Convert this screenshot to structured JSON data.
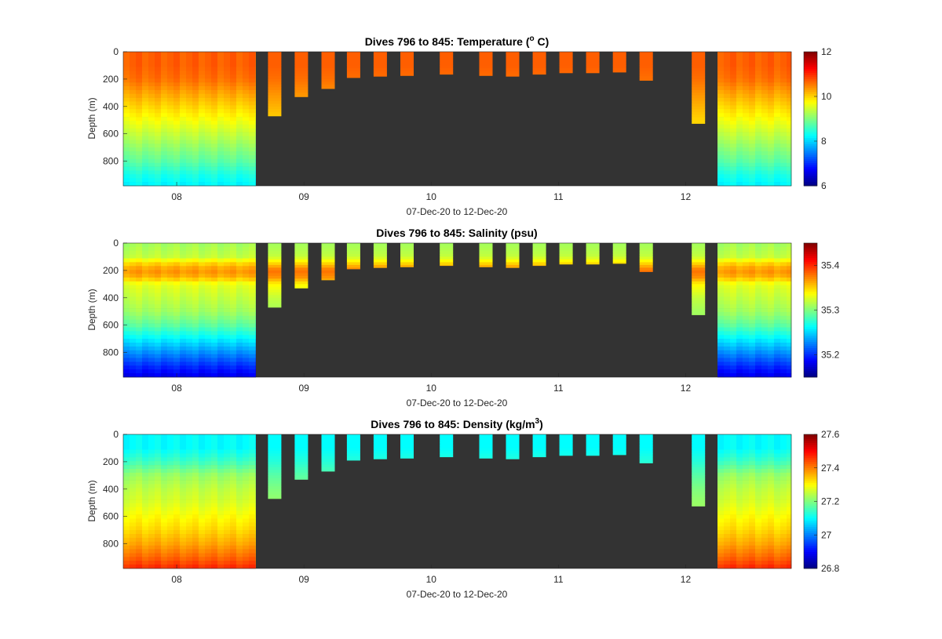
{
  "figure": {
    "xlabel": "07-Dec-20 to 12-Dec-20",
    "ylabel": "Depth (m)",
    "x_tick_labels": [
      "08",
      "09",
      "10",
      "11",
      "12"
    ],
    "y_tick_labels": [
      "0",
      "200",
      "400",
      "600",
      "800"
    ],
    "no_data_color": "#333333"
  },
  "chart_data": [
    {
      "type": "heatmap",
      "title_prefix": "Dives 796 to 845: Temperature (",
      "title_sup": "o",
      "title_suffix": " C)",
      "variable": "Temperature",
      "unit": "°C",
      "x_days": [
        7.58,
        12.83
      ],
      "ylim": [
        980,
        0
      ],
      "colorbar": {
        "min": 6,
        "max": 12,
        "ticks": [
          "12",
          "10",
          "8",
          "6"
        ],
        "tick_values": [
          12,
          10,
          8,
          6
        ]
      },
      "profile": {
        "depths": [
          0,
          100,
          200,
          300,
          400,
          500,
          600,
          700,
          800,
          900,
          980
        ],
        "values": [
          10.7,
          10.7,
          10.6,
          10.3,
          10.0,
          9.7,
          9.4,
          9.1,
          8.8,
          8.4,
          8.2
        ]
      },
      "short_dive_values": {
        "depths": [
          0,
          100,
          200,
          300,
          400,
          500
        ],
        "values": [
          10.7,
          10.7,
          10.6,
          10.4,
          10.2,
          10.0
        ]
      }
    },
    {
      "type": "heatmap",
      "title_prefix": "Dives 796 to 845: Salinity (psu)",
      "title_sup": "",
      "title_suffix": "",
      "variable": "Salinity",
      "unit": "psu",
      "x_days": [
        7.58,
        12.83
      ],
      "ylim": [
        980,
        0
      ],
      "colorbar": {
        "min": 35.15,
        "max": 35.45,
        "ticks": [
          "35.4",
          "35.3",
          "35.2"
        ],
        "tick_values": [
          35.4,
          35.3,
          35.2
        ]
      },
      "profile": {
        "depths": [
          0,
          100,
          150,
          200,
          250,
          300,
          400,
          500,
          600,
          700,
          800,
          900,
          980
        ],
        "values": [
          35.31,
          35.32,
          35.35,
          35.37,
          35.36,
          35.33,
          35.32,
          35.31,
          35.29,
          35.26,
          35.23,
          35.2,
          35.18
        ]
      },
      "short_dive_values": {
        "depths": [
          0,
          100,
          150,
          200,
          250,
          300,
          400,
          500
        ],
        "values": [
          35.31,
          35.32,
          35.35,
          35.38,
          35.37,
          35.34,
          35.32,
          35.31
        ]
      }
    },
    {
      "type": "heatmap",
      "title_prefix": "Dives 796 to 845: Density (kg/m",
      "title_sup": "3",
      "title_suffix": ")",
      "variable": "Density",
      "unit": "kg/m3",
      "x_days": [
        7.58,
        12.83
      ],
      "ylim": [
        980,
        0
      ],
      "colorbar": {
        "min": 26.8,
        "max": 27.6,
        "ticks": [
          "27.6",
          "27.4",
          "27.2",
          "27",
          "26.8"
        ],
        "tick_values": [
          27.6,
          27.4,
          27.2,
          27.0,
          26.8
        ]
      },
      "profile": {
        "depths": [
          0,
          100,
          200,
          300,
          400,
          500,
          600,
          700,
          800,
          900,
          980
        ],
        "values": [
          27.1,
          27.1,
          27.15,
          27.22,
          27.25,
          27.27,
          27.3,
          27.33,
          27.37,
          27.42,
          27.47
        ]
      },
      "short_dive_values": {
        "depths": [
          0,
          100,
          200,
          300,
          400,
          500
        ],
        "values": [
          27.1,
          27.1,
          27.13,
          27.17,
          27.2,
          27.22
        ]
      }
    }
  ],
  "dives": {
    "dense_segments": [
      [
        7.58,
        8.62
      ],
      [
        12.25,
        12.83
      ]
    ],
    "isolated_dives": [
      {
        "day": 8.77,
        "max_depth": 470
      },
      {
        "day": 8.98,
        "max_depth": 330
      },
      {
        "day": 9.19,
        "max_depth": 270
      },
      {
        "day": 9.39,
        "max_depth": 190
      },
      {
        "day": 9.6,
        "max_depth": 180
      },
      {
        "day": 9.81,
        "max_depth": 175
      },
      {
        "day": 10.12,
        "max_depth": 165
      },
      {
        "day": 10.43,
        "max_depth": 175
      },
      {
        "day": 10.64,
        "max_depth": 180
      },
      {
        "day": 10.85,
        "max_depth": 165
      },
      {
        "day": 11.06,
        "max_depth": 155
      },
      {
        "day": 11.27,
        "max_depth": 155
      },
      {
        "day": 11.48,
        "max_depth": 150
      },
      {
        "day": 11.69,
        "max_depth": 210
      },
      {
        "day": 12.1,
        "max_depth": 525
      }
    ]
  }
}
